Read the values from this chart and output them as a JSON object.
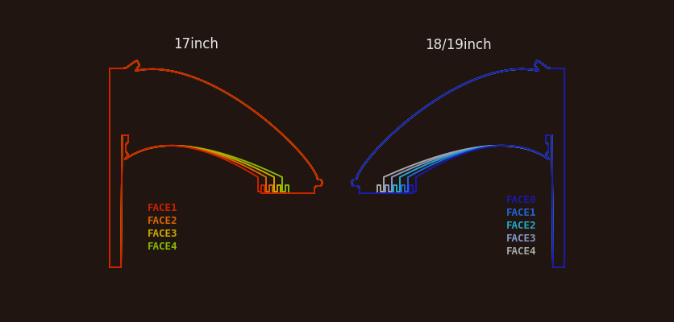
{
  "background_color": "#201510",
  "title_17": "17inch",
  "title_18": "18/19inch",
  "title_color": "#e8e8e8",
  "title_fontsize": 12,
  "legend_fontsize": 9,
  "colors_17": [
    "#cc2200",
    "#dd6600",
    "#ccaa00",
    "#88bb00"
  ],
  "labels_17": [
    "FACE1",
    "FACE2",
    "FACE3",
    "FACE4"
  ],
  "colors_18": [
    "#1a1aaa",
    "#2266dd",
    "#22aacc",
    "#8899cc",
    "#aaaaaa"
  ],
  "labels_18": [
    "FACE0",
    "FACE1",
    "FACE2",
    "FACE3",
    "FACE4"
  ],
  "lw": 1.4,
  "fig_w": 8.36,
  "fig_h": 4.0,
  "dpi": 100
}
